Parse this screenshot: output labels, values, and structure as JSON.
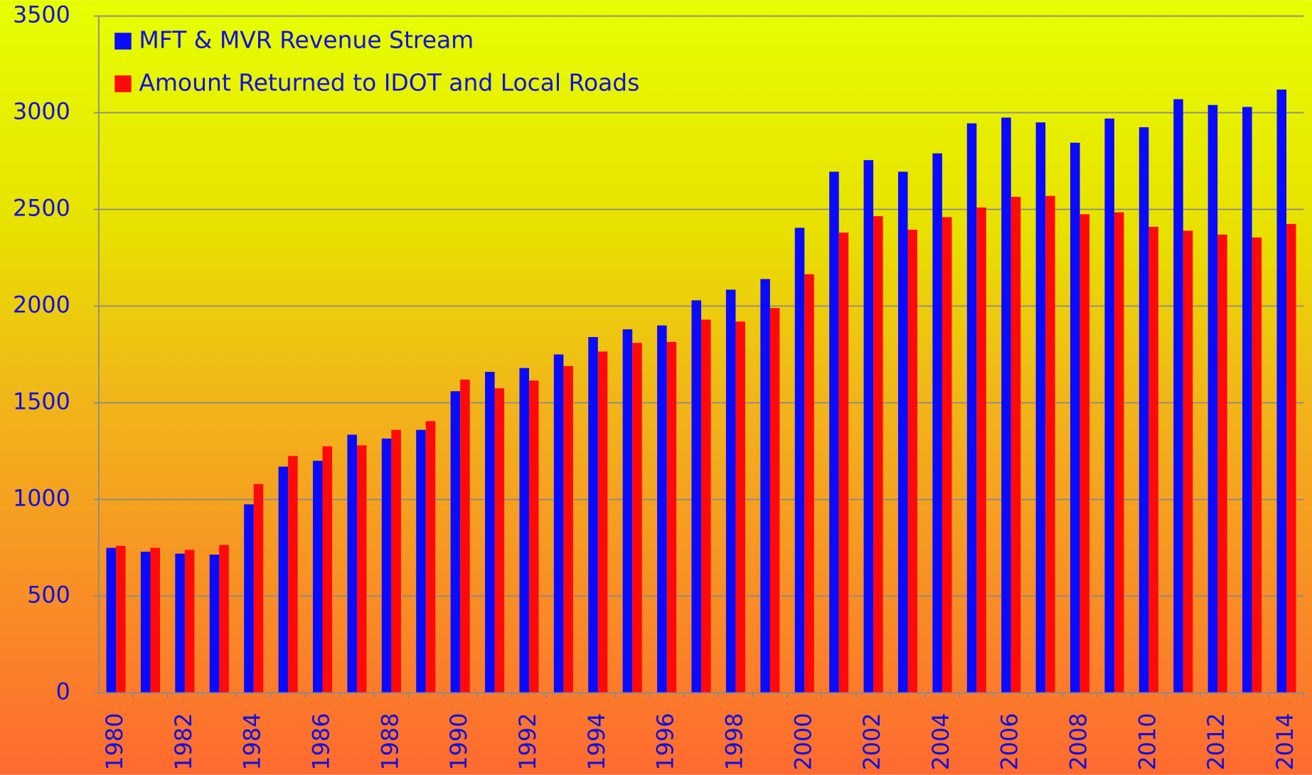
{
  "chart_data": {
    "type": "bar",
    "categories": [
      "1980",
      null,
      "1982",
      null,
      "1984",
      null,
      "1986",
      null,
      "1988",
      null,
      "1990",
      null,
      "1992",
      null,
      "1994",
      null,
      "1996",
      null,
      "1998",
      null,
      "2000",
      null,
      "2002",
      null,
      "2004",
      null,
      "2006",
      null,
      "2008",
      null,
      "2010",
      null,
      "2012",
      null,
      "2014"
    ],
    "series": [
      {
        "name": "MFT & MVR Revenue Stream",
        "color": "#0a0aff",
        "values": [
          750,
          730,
          720,
          715,
          975,
          1170,
          1200,
          1335,
          1315,
          1360,
          1560,
          1660,
          1680,
          1750,
          1840,
          1880,
          1900,
          2030,
          2085,
          2140,
          2405,
          2695,
          2755,
          2695,
          2790,
          2945,
          2975,
          2950,
          2845,
          2970,
          2925,
          3070,
          3040,
          3030,
          3120
        ]
      },
      {
        "name": "Amount Returned to IDOT and Local Roads",
        "color": "#ff0a0a",
        "values": [
          760,
          750,
          740,
          765,
          1080,
          1225,
          1275,
          1280,
          1360,
          1405,
          1620,
          1575,
          1615,
          1690,
          1765,
          1810,
          1815,
          1930,
          1920,
          1990,
          2165,
          2380,
          2465,
          2395,
          2460,
          2510,
          2565,
          2570,
          2475,
          2485,
          2410,
          2390,
          2370,
          2355,
          2425
        ]
      }
    ],
    "ylim": [
      0,
      3500
    ],
    "yticks": [
      0,
      500,
      1000,
      1500,
      2000,
      2500,
      3000,
      3500
    ],
    "grid": true,
    "legend": "upper left"
  }
}
